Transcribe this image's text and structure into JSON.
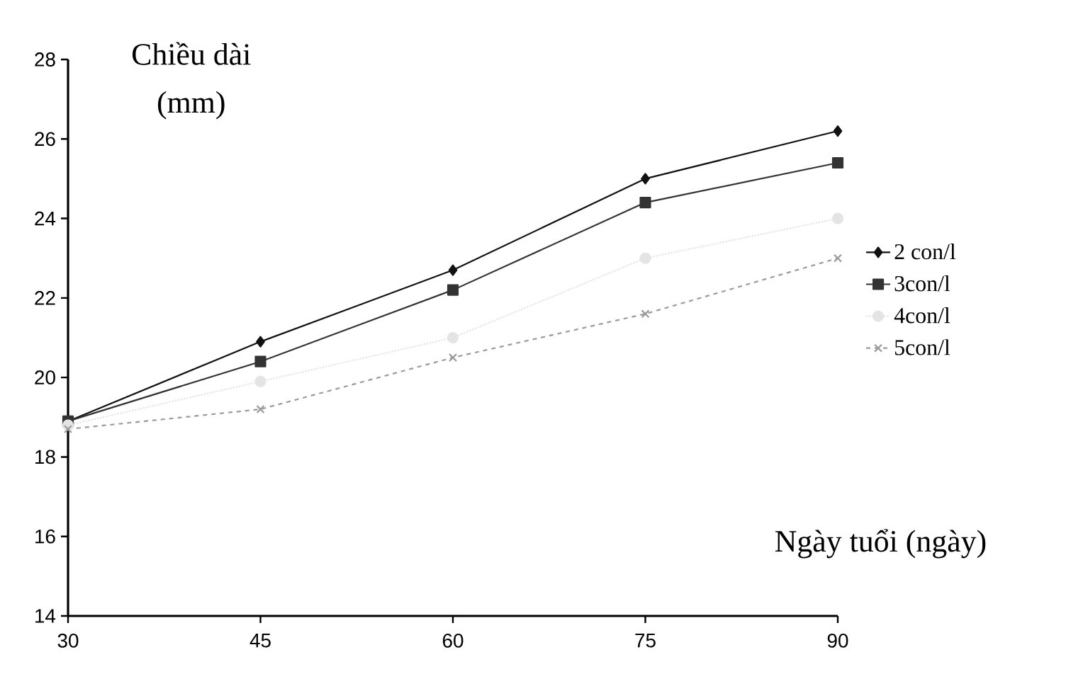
{
  "chart_data": {
    "type": "line",
    "xlabel": "Ngày tuổi (ngày)",
    "ylabel": "Chiều dài (mm)",
    "x": [
      30,
      45,
      60,
      75,
      90
    ],
    "series": [
      {
        "name": "2 con/l",
        "color": "#111111",
        "values": [
          18.9,
          20.9,
          22.7,
          25.0,
          26.2
        ],
        "marker": "diamond",
        "line_style": "solid"
      },
      {
        "name": "3con/l",
        "color": "#333333",
        "values": [
          18.9,
          20.4,
          22.2,
          24.4,
          25.4
        ],
        "marker": "square",
        "line_style": "solid"
      },
      {
        "name": "4con/l",
        "color": "#e4e4e4",
        "values": [
          18.8,
          19.9,
          21.0,
          23.0,
          24.0
        ],
        "marker": "circle",
        "line_style": "dotted"
      },
      {
        "name": "5con/l",
        "color": "#9a9a9a",
        "values": [
          18.7,
          19.2,
          20.5,
          21.6,
          23.0
        ],
        "marker": "cross",
        "line_style": "dashed"
      }
    ],
    "xlim": [
      30,
      90
    ],
    "xticks": [
      30,
      45,
      60,
      75,
      90
    ],
    "ylim": [
      14,
      28
    ],
    "yticks": [
      14,
      16,
      18,
      20,
      22,
      24,
      26,
      28
    ],
    "grid": false,
    "legend": "right"
  }
}
